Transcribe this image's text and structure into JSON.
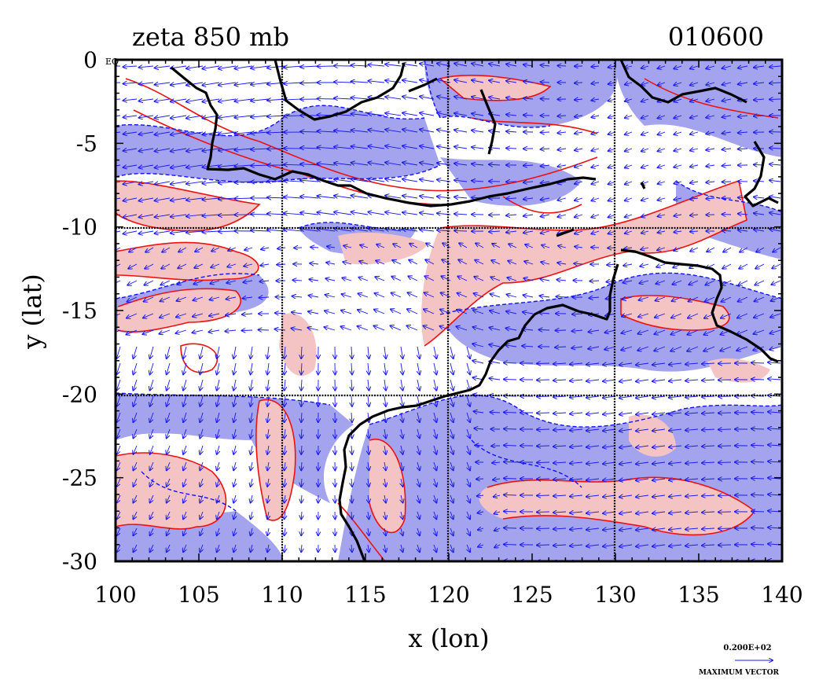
{
  "title_left": "zeta 850 mb",
  "title_right": "010600",
  "xlabel": "x (lon)",
  "ylabel": "y (lat)",
  "eq_label": "EQ",
  "x_ticks": [
    "100",
    "105",
    "110",
    "115",
    "120",
    "125",
    "130",
    "135",
    "140"
  ],
  "y_ticks": [
    "0",
    "-5",
    "-10",
    "-15",
    "-20",
    "-25",
    "-30"
  ],
  "vector_legend": {
    "value": "0.200E+02",
    "caption": "MAXIMUM VECTOR"
  },
  "colors": {
    "negative_fill": "#a3a3ee",
    "positive_fill": "#f4c4c4",
    "negative_contour": "#1010ff",
    "positive_contour": "#ee1111",
    "vector": "#1818ee",
    "coastline": "#000000"
  },
  "map": {
    "type": "contour-vector map",
    "lon_range": [
      100,
      140
    ],
    "lat_range": [
      -30,
      0
    ],
    "grid_lon": [
      110,
      120,
      130
    ],
    "grid_lat": [
      -10,
      -20
    ]
  }
}
